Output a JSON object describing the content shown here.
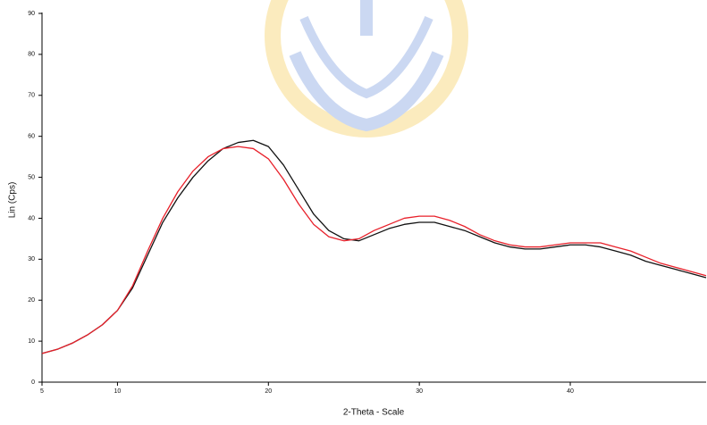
{
  "chart_data": {
    "type": "line",
    "xlabel": "2-Theta - Scale",
    "ylabel": "Lin (Cps)",
    "x": [
      5,
      6,
      7,
      8,
      9,
      10,
      11,
      12,
      13,
      14,
      15,
      16,
      17,
      18,
      19,
      20,
      21,
      22,
      23,
      24,
      25,
      26,
      27,
      28,
      29,
      30,
      31,
      32,
      33,
      34,
      35,
      36,
      37,
      38,
      39,
      40,
      41,
      42,
      43,
      44,
      45,
      46,
      47,
      48,
      49
    ],
    "series": [
      {
        "color": "#111111",
        "values": [
          7,
          8,
          9.5,
          11.5,
          14,
          17.5,
          23,
          31,
          39,
          45,
          50,
          54,
          57,
          58.5,
          59,
          57.5,
          53,
          47,
          41,
          37,
          35,
          34.5,
          36,
          37.5,
          38.5,
          39,
          39,
          38,
          37,
          35.5,
          34,
          33,
          32.5,
          32.5,
          33,
          33.5,
          33.5,
          33,
          32,
          31,
          29.5,
          28.5,
          27.5,
          26.5,
          25.5
        ]
      },
      {
        "color": "#e8202a",
        "values": [
          7,
          8,
          9.5,
          11.5,
          14,
          17.5,
          23.5,
          32,
          40,
          46.5,
          51.5,
          55,
          57,
          57.5,
          57,
          54.5,
          49.5,
          43.5,
          38.5,
          35.5,
          34.5,
          35,
          37,
          38.5,
          40,
          40.5,
          40.5,
          39.5,
          38,
          36,
          34.5,
          33.5,
          33,
          33,
          33.5,
          34,
          34,
          34,
          33,
          32,
          30.5,
          29,
          28,
          27,
          26
        ]
      }
    ],
    "xlim": [
      5,
      49
    ],
    "xticks": [
      5,
      10,
      20,
      30,
      40
    ],
    "ylim": [
      0,
      90
    ],
    "yticks": [
      0,
      10,
      20,
      30,
      40,
      50,
      60,
      70,
      80,
      90
    ]
  }
}
